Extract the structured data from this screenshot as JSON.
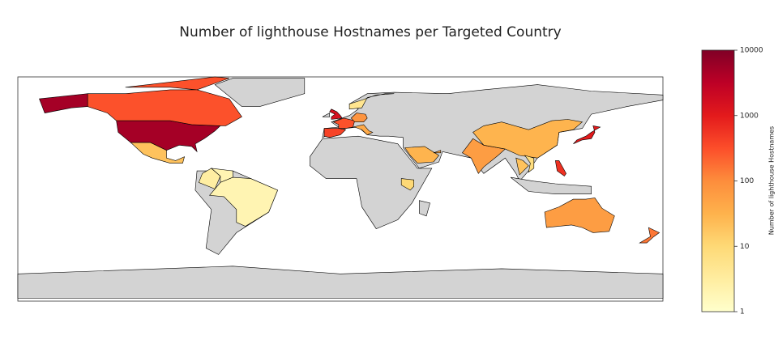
{
  "chart_data": {
    "type": "choropleth",
    "title": "Number of lighthouse Hostnames per Targeted Country",
    "colorbar_label": "Number of lighthouse Hostnames",
    "log_scale": true,
    "clim": [
      1,
      10000
    ],
    "cticks": [
      1,
      10,
      100,
      1000,
      10000
    ],
    "colormap": [
      "#ffffcc",
      "#ffeda0",
      "#fed976",
      "#feb24c",
      "#fd8d3c",
      "#fc4e2a",
      "#e31a1c",
      "#bd0026",
      "#800026"
    ],
    "no_data_color": "#d3d3d3",
    "categories": [
      null,
      null,
      null,
      null,
      null,
      null,
      null,
      null,
      null,
      null,
      null,
      null,
      null,
      null,
      null,
      null,
      null,
      null,
      null,
      null,
      null,
      null,
      null
    ],
    "values": [
      5000,
      300,
      20,
      3,
      2,
      2,
      1500,
      300,
      400,
      80,
      40,
      5,
      60,
      30,
      1000,
      600,
      20,
      8,
      30,
      40,
      10,
      60,
      150
    ]
  }
}
